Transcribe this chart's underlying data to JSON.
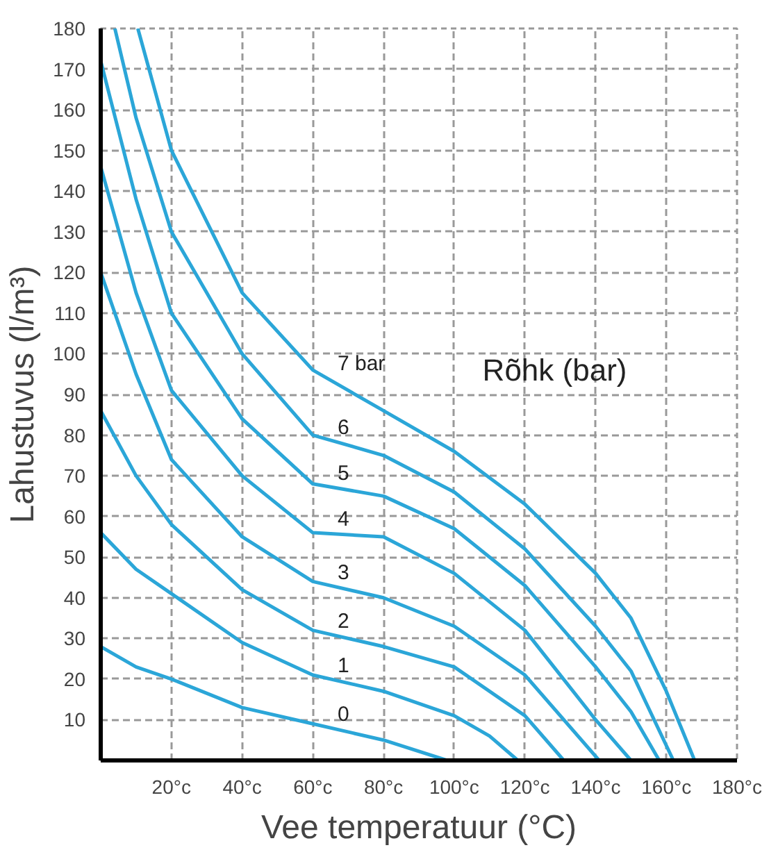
{
  "chart_data": {
    "type": "line",
    "xlabel": "Vee temperatuur (°C)",
    "ylabel": "Lahustuvus (l/m³)",
    "xlim": [
      0,
      180
    ],
    "ylim": [
      0,
      180
    ],
    "xticks": [
      {
        "value": 20,
        "label": "20°c"
      },
      {
        "value": 40,
        "label": "40°c"
      },
      {
        "value": 60,
        "label": "60°c"
      },
      {
        "value": 80,
        "label": "80°c"
      },
      {
        "value": 100,
        "label": "100°c"
      },
      {
        "value": 120,
        "label": "120°c"
      },
      {
        "value": 140,
        "label": "140°c"
      },
      {
        "value": 160,
        "label": "160°c"
      },
      {
        "value": 180,
        "label": "180°c"
      }
    ],
    "yticks": [
      10,
      20,
      30,
      40,
      50,
      60,
      70,
      80,
      90,
      100,
      110,
      120,
      130,
      140,
      150,
      160,
      170,
      180
    ],
    "grid": true,
    "line_style": "solid",
    "marker": "none",
    "series": [
      {
        "name": "0",
        "color": "#2ba6d8",
        "x": [
          0,
          10,
          20,
          40,
          60,
          80,
          98
        ],
        "values": [
          28,
          23,
          20,
          13,
          9,
          5,
          0
        ]
      },
      {
        "name": "1",
        "color": "#2ba6d8",
        "x": [
          0,
          10,
          20,
          40,
          60,
          80,
          100,
          110,
          118
        ],
        "values": [
          56,
          47,
          41,
          29,
          21,
          17,
          11,
          6,
          0
        ]
      },
      {
        "name": "2",
        "color": "#2ba6d8",
        "x": [
          0,
          10,
          20,
          40,
          60,
          80,
          100,
          120,
          131
        ],
        "values": [
          86,
          70,
          58,
          42,
          32,
          28,
          23,
          11,
          0
        ]
      },
      {
        "name": "3",
        "color": "#2ba6d8",
        "x": [
          0,
          10,
          20,
          40,
          60,
          80,
          100,
          120,
          141
        ],
        "values": [
          120,
          95,
          74,
          55,
          44,
          40,
          33,
          21,
          0
        ]
      },
      {
        "name": "4",
        "color": "#2ba6d8",
        "x": [
          0,
          10,
          20,
          40,
          60,
          80,
          100,
          120,
          140,
          150
        ],
        "values": [
          146,
          115,
          91,
          70,
          56,
          55,
          46,
          32,
          10,
          0
        ]
      },
      {
        "name": "5",
        "color": "#2ba6d8",
        "x": [
          0,
          10,
          20,
          40,
          60,
          80,
          100,
          120,
          140,
          150,
          158
        ],
        "values": [
          172,
          138,
          110,
          84,
          68,
          65,
          57,
          43,
          23,
          12,
          0
        ]
      },
      {
        "name": "6",
        "color": "#2ba6d8",
        "x": [
          4,
          10,
          20,
          40,
          60,
          80,
          100,
          120,
          140,
          150,
          162
        ],
        "values": [
          180,
          158,
          130,
          100,
          80,
          75,
          66,
          52,
          33,
          22,
          0
        ]
      },
      {
        "name": "7 bar",
        "color": "#2ba6d8",
        "x": [
          10.5,
          20,
          40,
          60,
          80,
          100,
          120,
          140,
          150,
          160,
          168
        ],
        "values": [
          180,
          150,
          115,
          96,
          86,
          76,
          63,
          46,
          35,
          17,
          0
        ]
      }
    ],
    "annotations": [
      "Rõhk (bar)"
    ]
  }
}
